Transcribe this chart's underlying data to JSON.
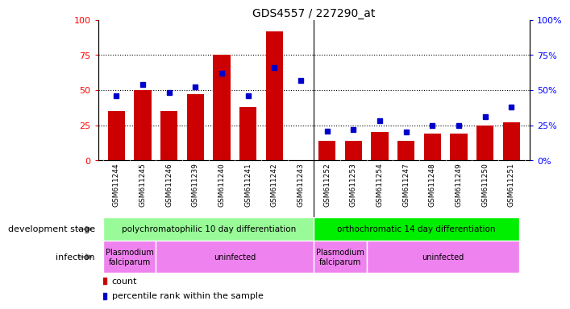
{
  "title": "GDS4557 / 227290_at",
  "samples": [
    "GSM611244",
    "GSM611245",
    "GSM611246",
    "GSM611239",
    "GSM611240",
    "GSM611241",
    "GSM611242",
    "GSM611243",
    "GSM611252",
    "GSM611253",
    "GSM611254",
    "GSM611247",
    "GSM611248",
    "GSM611249",
    "GSM611250",
    "GSM611251"
  ],
  "red_bars": [
    35,
    50,
    35,
    47,
    75,
    38,
    92,
    0,
    14,
    14,
    20,
    14,
    19,
    19,
    25,
    27
  ],
  "blue_squares": [
    46,
    54,
    48,
    52,
    62,
    46,
    66,
    57,
    21,
    22,
    28,
    20,
    25,
    25,
    31,
    38
  ],
  "group1_label": "polychromatophilic 10 day differentiation",
  "group2_label": "orthochromatic 14 day differentiation",
  "infect1a_label": "Plasmodium\nfalciparum",
  "infect1b_label": "uninfected",
  "infect2a_label": "Plasmodium\nfalciparum",
  "infect2b_label": "uninfected",
  "group1_color": "#98fb98",
  "group2_color": "#00ee00",
  "infect_pf_color": "#ee82ee",
  "infect_un_color": "#ee82ee",
  "bar_color": "#cc0000",
  "square_color": "#0000cc",
  "xtick_bg": "#c0c0c0",
  "ylim_left": [
    0,
    100
  ],
  "ylim_right": [
    0,
    100
  ],
  "yticks_left": [
    0,
    25,
    50,
    75,
    100
  ],
  "yticks_right": [
    0,
    25,
    50,
    75,
    100
  ],
  "legend_count": "count",
  "legend_pct": "percentile rank within the sample",
  "dev_stage_label": "development stage",
  "infection_label": "infection",
  "group1_samples": 8,
  "group2_samples": 8,
  "pf1_samples": 2,
  "un1_samples": 6,
  "pf2_samples": 2,
  "un2_samples": 6
}
